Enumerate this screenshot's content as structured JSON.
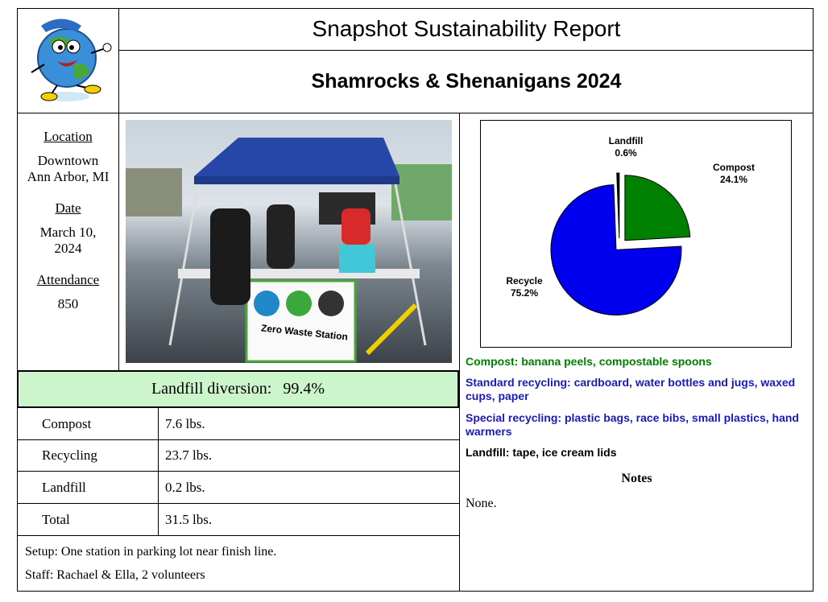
{
  "header": {
    "title": "Snapshot Sustainability Report",
    "event": "Shamrocks & Shenanigans 2024"
  },
  "info": {
    "location_label": "Location",
    "location_line1": "Downtown",
    "location_line2": "Ann Arbor, MI",
    "date_label": "Date",
    "date_line1": "March 10,",
    "date_line2": "2024",
    "attendance_label": "Attendance",
    "attendance_value": "850"
  },
  "photo": {
    "sign_text": "Zero Waste Station"
  },
  "diversion": {
    "label": "Landfill diversion:",
    "value": "99.4%"
  },
  "table": {
    "rows": [
      {
        "label": "Compost",
        "value": "7.6 lbs."
      },
      {
        "label": "Recycling",
        "value": "23.7 lbs."
      },
      {
        "label": "Landfill",
        "value": "0.2 lbs."
      },
      {
        "label": "Total",
        "value": "31.5 lbs."
      }
    ]
  },
  "footer": {
    "setup": "Setup: One station in parking lot near finish line.",
    "staff": "Staff: Rachael & Ella, 2 volunteers"
  },
  "chart_data": {
    "type": "pie",
    "slices": [
      {
        "name": "Compost",
        "label": "Compost",
        "pct_label": "24.1%",
        "value": 24.1,
        "color": "#008000"
      },
      {
        "name": "Recycle",
        "label": "Recycle",
        "pct_label": "75.2%",
        "value": 75.2,
        "color": "#0000ee"
      },
      {
        "name": "Landfill",
        "label": "Landfill",
        "pct_label": "0.6%",
        "value": 0.6,
        "color": "#000000"
      }
    ]
  },
  "categories": {
    "compost": {
      "label": "Compost:",
      "text": "banana peels, compostable spoons",
      "color": "#008000"
    },
    "standard": {
      "label": "Standard recycling:",
      "text": "cardboard, water bottles and jugs, waxed cups, paper",
      "color": "#1a1ab8"
    },
    "special": {
      "label": "Special recycling:",
      "text": "plastic bags, race bibs, small plastics, hand warmers",
      "color": "#1a1ab8"
    },
    "landfill": {
      "label": "Landfill:",
      "text": "tape, ice cream lids",
      "color": "#000000"
    }
  },
  "notes": {
    "heading": "Notes",
    "text": "None."
  }
}
